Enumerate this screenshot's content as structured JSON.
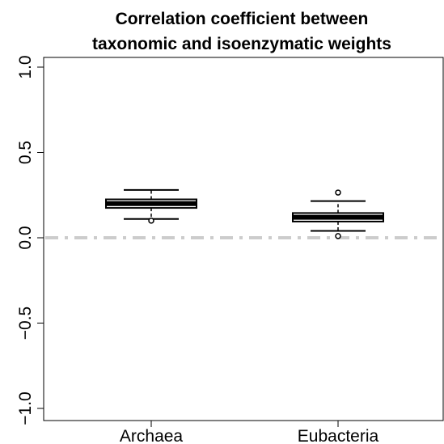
{
  "chart_data": {
    "type": "boxplot",
    "title": [
      "Correlation coefficient between",
      "taxonomic and isoenzymatic weights"
    ],
    "xlabel": "",
    "ylabel": "",
    "ylim": [
      -1.0,
      1.0
    ],
    "yticks": [
      {
        "value": 1.0,
        "label": "1.0"
      },
      {
        "value": 0.5,
        "label": "0.5"
      },
      {
        "value": 0.0,
        "label": "0.0"
      },
      {
        "value": -0.5,
        "label": "-0.5"
      },
      {
        "value": -1.0,
        "label": "-1.0"
      }
    ],
    "categories": [
      "Archaea",
      "Eubacteria"
    ],
    "boxes": [
      {
        "name": "Archaea",
        "whisker_low": 0.11,
        "q1": 0.175,
        "median": 0.2,
        "q3": 0.225,
        "whisker_high": 0.28,
        "outliers": [
          0.1
        ]
      },
      {
        "name": "Eubacteria",
        "whisker_low": 0.04,
        "q1": 0.095,
        "median": 0.12,
        "q3": 0.145,
        "whisker_high": 0.215,
        "outliers": [
          0.265,
          0.01
        ]
      }
    ],
    "reference_line": {
      "value": 0.0,
      "style": "dash-dot",
      "color": "#cccccc"
    },
    "grid": false,
    "colors": {
      "box": "#000000",
      "reference": "#cccccc"
    }
  }
}
